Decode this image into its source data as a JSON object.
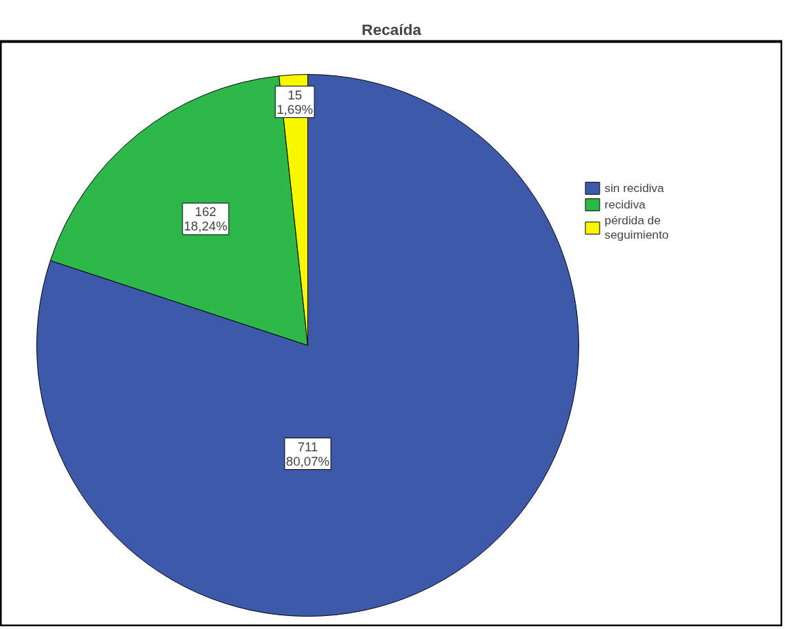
{
  "chart_data": {
    "type": "pie",
    "title": "Recaída",
    "categories": [
      "sin recidiva",
      "recidiva",
      "pérdida de seguimiento"
    ],
    "values": [
      711,
      162,
      15
    ],
    "colors": [
      "#3e58ac",
      "#2db84b",
      "#f7f700"
    ],
    "value_labels": [
      "711\n80,07%",
      "162\n18,24%",
      "15\n1,69%"
    ],
    "legend": "right"
  }
}
